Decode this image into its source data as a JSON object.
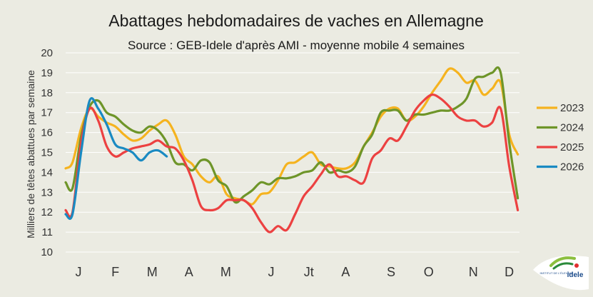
{
  "chart_data": {
    "type": "line",
    "title": "Abattages hebdomadaires de vaches en Allemagne",
    "subtitle": "Source : GEB-Idele d'après AMI - moyenne mobile 4 semaines",
    "xlabel": "",
    "ylabel": "Milliers de têtes abattues par semaine",
    "ylim": [
      10,
      20
    ],
    "xlim": [
      1,
      52
    ],
    "y_ticks": [
      10,
      11,
      12,
      13,
      14,
      15,
      16,
      17,
      18,
      19,
      20
    ],
    "grid": "horizontal",
    "legend_position": "right",
    "month_labels": [
      "J",
      "F",
      "M",
      "A",
      "M",
      "J",
      "Jt",
      "A",
      "S",
      "O",
      "N",
      "D"
    ],
    "month_label_weeks": [
      2.5,
      6.8,
      11.1,
      15.4,
      19.7,
      25.0,
      29.4,
      33.7,
      39.0,
      43.4,
      48.6,
      52.8
    ],
    "series": [
      {
        "name": "2023",
        "color": "#f5b31f",
        "x": [
          1,
          1.8,
          2.8,
          3.8,
          4.8,
          5.8,
          6.8,
          7.8,
          8.8,
          9.8,
          10.8,
          11.8,
          12.8,
          13.8,
          14.8,
          15.8,
          16.8,
          17.8,
          18.8,
          19.8,
          20.8,
          21.8,
          22.8,
          23.8,
          24.8,
          25.8,
          26.8,
          27.8,
          28.8,
          29.8,
          30.8,
          31.8,
          32.8,
          33.8,
          34.8,
          35.8,
          36.8,
          37.8,
          38.8,
          39.8,
          40.8,
          41.8,
          42.8,
          43.8,
          44.8,
          45.8,
          46.8,
          47.8,
          48.8,
          49.8,
          50.8,
          51.8,
          52.8,
          53.8
        ],
        "values": [
          14.2,
          14.5,
          16.2,
          17.2,
          16.8,
          16.5,
          16.3,
          15.9,
          15.6,
          15.7,
          16.1,
          16.4,
          16.6,
          15.9,
          14.8,
          14.4,
          13.8,
          13.5,
          13.8,
          12.9,
          12.7,
          12.6,
          12.4,
          12.9,
          13.0,
          13.6,
          14.4,
          14.5,
          14.8,
          15.0,
          14.4,
          14.3,
          14.2,
          14.2,
          14.5,
          15.3,
          16.0,
          16.8,
          17.2,
          17.2,
          16.6,
          16.8,
          17.3,
          18.0,
          18.6,
          19.2,
          19.0,
          18.5,
          18.6,
          17.9,
          18.2,
          18.5,
          15.9,
          14.9
        ]
      },
      {
        "name": "2024",
        "color": "#6e9529",
        "x": [
          1,
          1.8,
          2.8,
          3.8,
          4.8,
          5.8,
          6.8,
          7.8,
          8.8,
          9.8,
          10.8,
          11.8,
          12.8,
          13.8,
          14.8,
          15.8,
          16.8,
          17.8,
          18.8,
          19.8,
          20.8,
          21.8,
          22.8,
          23.8,
          24.8,
          25.8,
          26.8,
          27.8,
          28.8,
          29.8,
          30.8,
          31.8,
          32.8,
          33.8,
          34.8,
          35.8,
          36.8,
          37.8,
          38.8,
          39.8,
          40.8,
          41.8,
          42.8,
          43.8,
          44.8,
          45.8,
          46.8,
          47.8,
          48.8,
          49.8,
          50.8,
          51.8,
          52.8,
          53.8
        ],
        "values": [
          13.5,
          13.2,
          15.8,
          17.3,
          17.6,
          17.0,
          16.8,
          16.4,
          16.1,
          16.0,
          16.3,
          16.1,
          15.5,
          14.5,
          14.4,
          14.1,
          14.6,
          14.5,
          13.6,
          13.3,
          12.5,
          12.8,
          13.1,
          13.5,
          13.4,
          13.7,
          13.7,
          13.8,
          14.0,
          14.1,
          14.5,
          14.0,
          14.1,
          14.0,
          14.3,
          15.3,
          15.9,
          17.0,
          17.1,
          17.1,
          16.6,
          16.9,
          16.9,
          17.0,
          17.1,
          17.1,
          17.3,
          17.7,
          18.7,
          18.8,
          19.0,
          19.0,
          15.5,
          12.7
        ]
      },
      {
        "name": "2025",
        "color": "#ec4141",
        "x": [
          1,
          1.8,
          2.8,
          3.8,
          4.8,
          5.8,
          6.8,
          7.8,
          8.8,
          9.8,
          10.8,
          11.8,
          12.8,
          13.8,
          14.8,
          15.8,
          16.8,
          17.8,
          18.8,
          19.8,
          20.8,
          21.8,
          22.8,
          23.8,
          24.8,
          25.8,
          26.8,
          27.8,
          28.8,
          29.8,
          30.8,
          31.8,
          32.8,
          33.8,
          34.8,
          35.8,
          36.8,
          37.8,
          38.8,
          39.8,
          40.8,
          41.8,
          42.8,
          43.8,
          44.8,
          45.8,
          46.8,
          47.8,
          48.8,
          49.8,
          50.8,
          51.8,
          52.8,
          53.8
        ],
        "values": [
          12.1,
          12.0,
          15.5,
          17.2,
          16.6,
          15.3,
          14.8,
          15.0,
          15.2,
          15.3,
          15.4,
          15.6,
          15.3,
          15.2,
          14.6,
          13.6,
          12.3,
          12.1,
          12.2,
          12.6,
          12.6,
          12.6,
          12.2,
          11.5,
          11.0,
          11.3,
          11.1,
          11.9,
          12.8,
          13.3,
          13.9,
          14.4,
          13.8,
          13.8,
          13.6,
          13.5,
          14.7,
          15.1,
          15.7,
          15.6,
          16.3,
          17.1,
          17.6,
          17.9,
          17.7,
          17.3,
          16.8,
          16.6,
          16.6,
          16.3,
          16.5,
          17.2,
          14.3,
          12.1
        ]
      },
      {
        "name": "2026",
        "color": "#1a8ac2",
        "x": [
          1,
          1.8,
          2.8,
          3.8,
          4.8,
          5.8,
          6.8,
          7.8,
          8.8,
          9.8,
          10.8,
          11.8,
          12.8
        ],
        "values": [
          11.9,
          11.9,
          15.0,
          17.6,
          17.2,
          16.4,
          15.4,
          15.2,
          15.0,
          14.6,
          15.0,
          15.1,
          14.8
        ]
      }
    ]
  },
  "logo": {
    "text_main": "idele",
    "text_small": "INSTITUT DE L'ÉLEVAGE"
  }
}
